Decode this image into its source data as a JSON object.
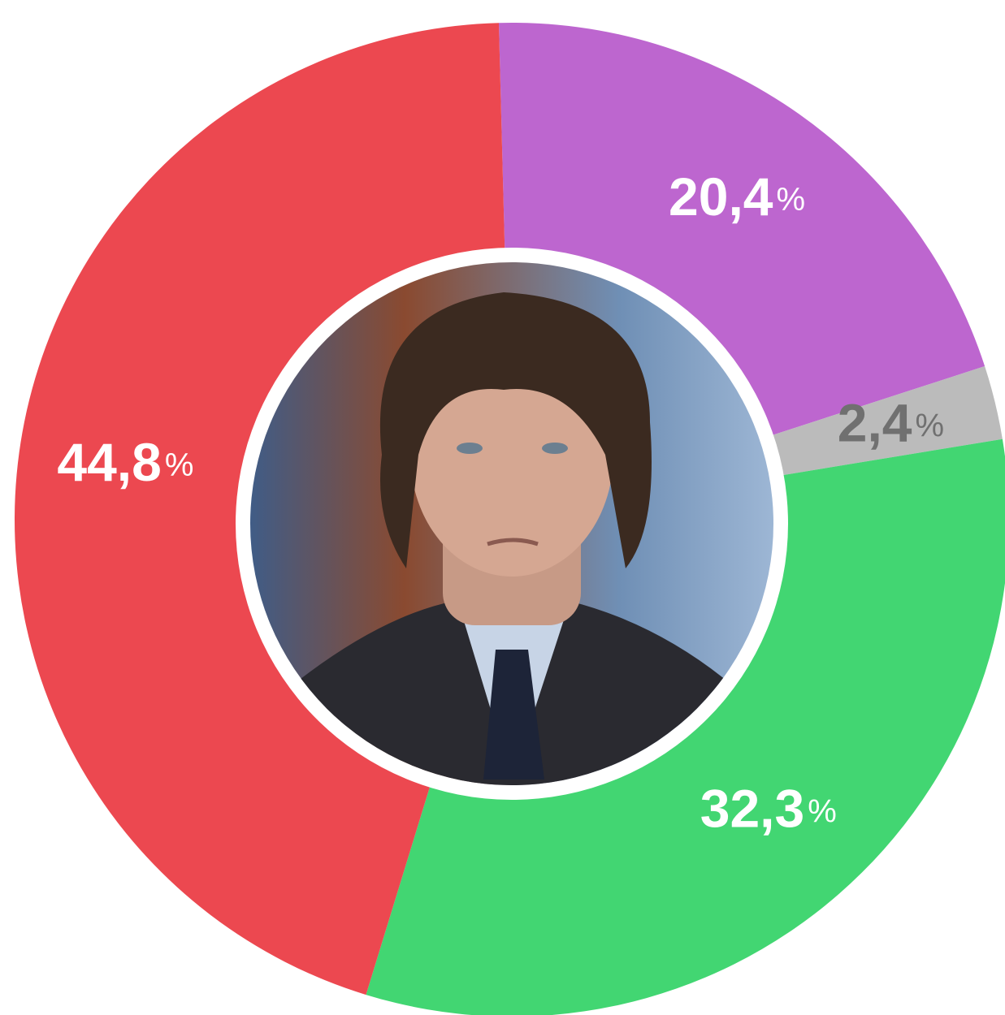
{
  "chart_data": {
    "type": "donut",
    "categories": [
      null,
      null,
      null,
      null
    ],
    "values": [
      20.4,
      2.4,
      32.3,
      44.8
    ],
    "value_labels": [
      "20,4%",
      "2,4%",
      "32,3%",
      "44,8%"
    ],
    "colors": [
      "#bd66cf",
      "#bbbbbb",
      "#42d672",
      "#ec4850"
    ],
    "label_colors": [
      "#ffffff",
      "#707070",
      "#ffffff",
      "#ffffff"
    ]
  }
}
